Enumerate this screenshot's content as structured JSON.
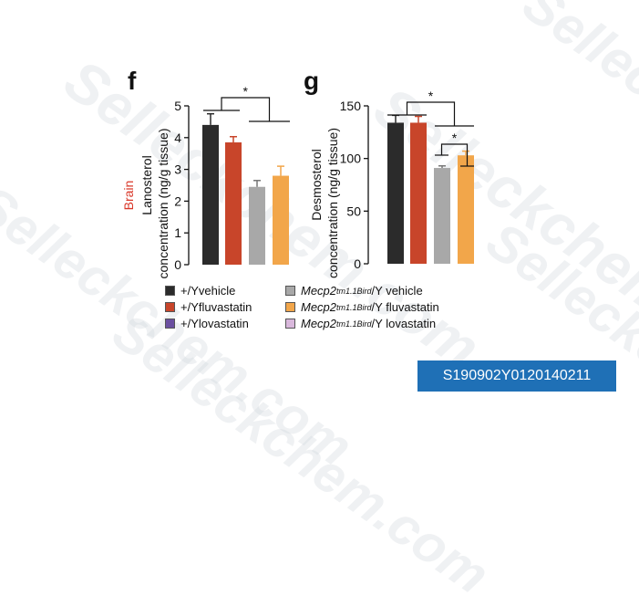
{
  "watermark": "Selleckchem.com",
  "badge": "S190902Y0120140211",
  "chart_data": [
    {
      "panel_label": "f",
      "type": "bar",
      "region_label": "Brain",
      "region_color": "#d9382a",
      "ylabel_line1": "Lanosterol",
      "ylabel_line2": "concentration (ng/g tissue)",
      "ylim": [
        0,
        5
      ],
      "yticks": [
        0,
        1,
        2,
        3,
        4,
        5
      ],
      "bars": [
        {
          "group": "+/Y vehicle",
          "value": 4.4,
          "error": 0.35,
          "color": "#2b2b2b"
        },
        {
          "group": "+/Y fluvastatin",
          "value": 3.85,
          "error": 0.18,
          "color": "#c8452a"
        },
        {
          "group": "Mecp2 tm1.1Bird/Y vehicle",
          "value": 2.45,
          "error": 0.2,
          "color": "#a8a8a8"
        },
        {
          "group": "Mecp2 tm1.1Bird/Y fluvastatin",
          "value": 2.8,
          "error": 0.3,
          "color": "#f2a64a"
        }
      ],
      "significance": [
        {
          "between": [
            [
              0,
              1
            ],
            [
              2,
              3
            ]
          ],
          "label": "*"
        }
      ]
    },
    {
      "panel_label": "g",
      "type": "bar",
      "ylabel_line1": "Desmosterol",
      "ylabel_line2": "concentration (ng/g tissue)",
      "ylim": [
        0,
        150
      ],
      "yticks": [
        0,
        50,
        100,
        150
      ],
      "bars": [
        {
          "group": "+/Y vehicle",
          "value": 134,
          "error": 7,
          "color": "#2b2b2b"
        },
        {
          "group": "+/Y fluvastatin",
          "value": 134,
          "error": 6,
          "color": "#c8452a"
        },
        {
          "group": "Mecp2 tm1.1Bird/Y vehicle",
          "value": 91,
          "error": 2,
          "color": "#a8a8a8"
        },
        {
          "group": "Mecp2 tm1.1Bird/Y fluvastatin",
          "value": 103,
          "error": 4,
          "color": "#f2a64a"
        }
      ],
      "significance": [
        {
          "between": [
            [
              0,
              1
            ],
            [
              2,
              3
            ]
          ],
          "label": "*"
        },
        {
          "between": [
            [
              2
            ],
            [
              3
            ]
          ],
          "label": "*"
        }
      ]
    }
  ],
  "legend": [
    {
      "prefix": "+/Y",
      "italic": "",
      "sup": "",
      "suffix": " vehicle",
      "color": "#2b2b2b"
    },
    {
      "prefix": "+/Y",
      "italic": "",
      "sup": "",
      "suffix": " fluvastatin",
      "color": "#c8452a"
    },
    {
      "prefix": "+/Y",
      "italic": "",
      "sup": "",
      "suffix": " lovastatin",
      "color": "#6b4fa0"
    },
    {
      "prefix": "",
      "italic": "Mecp2",
      "sup": "tm1.1Bird",
      "suffix": "/Y vehicle",
      "color": "#a8a8a8"
    },
    {
      "prefix": "",
      "italic": "Mecp2",
      "sup": "tm1.1Bird",
      "suffix": "/Y fluvastatin",
      "color": "#f2a64a"
    },
    {
      "prefix": "",
      "italic": "Mecp2",
      "sup": "tm1.1Bird",
      "suffix": "/Y lovastatin",
      "color": "#d9b8dc"
    }
  ]
}
